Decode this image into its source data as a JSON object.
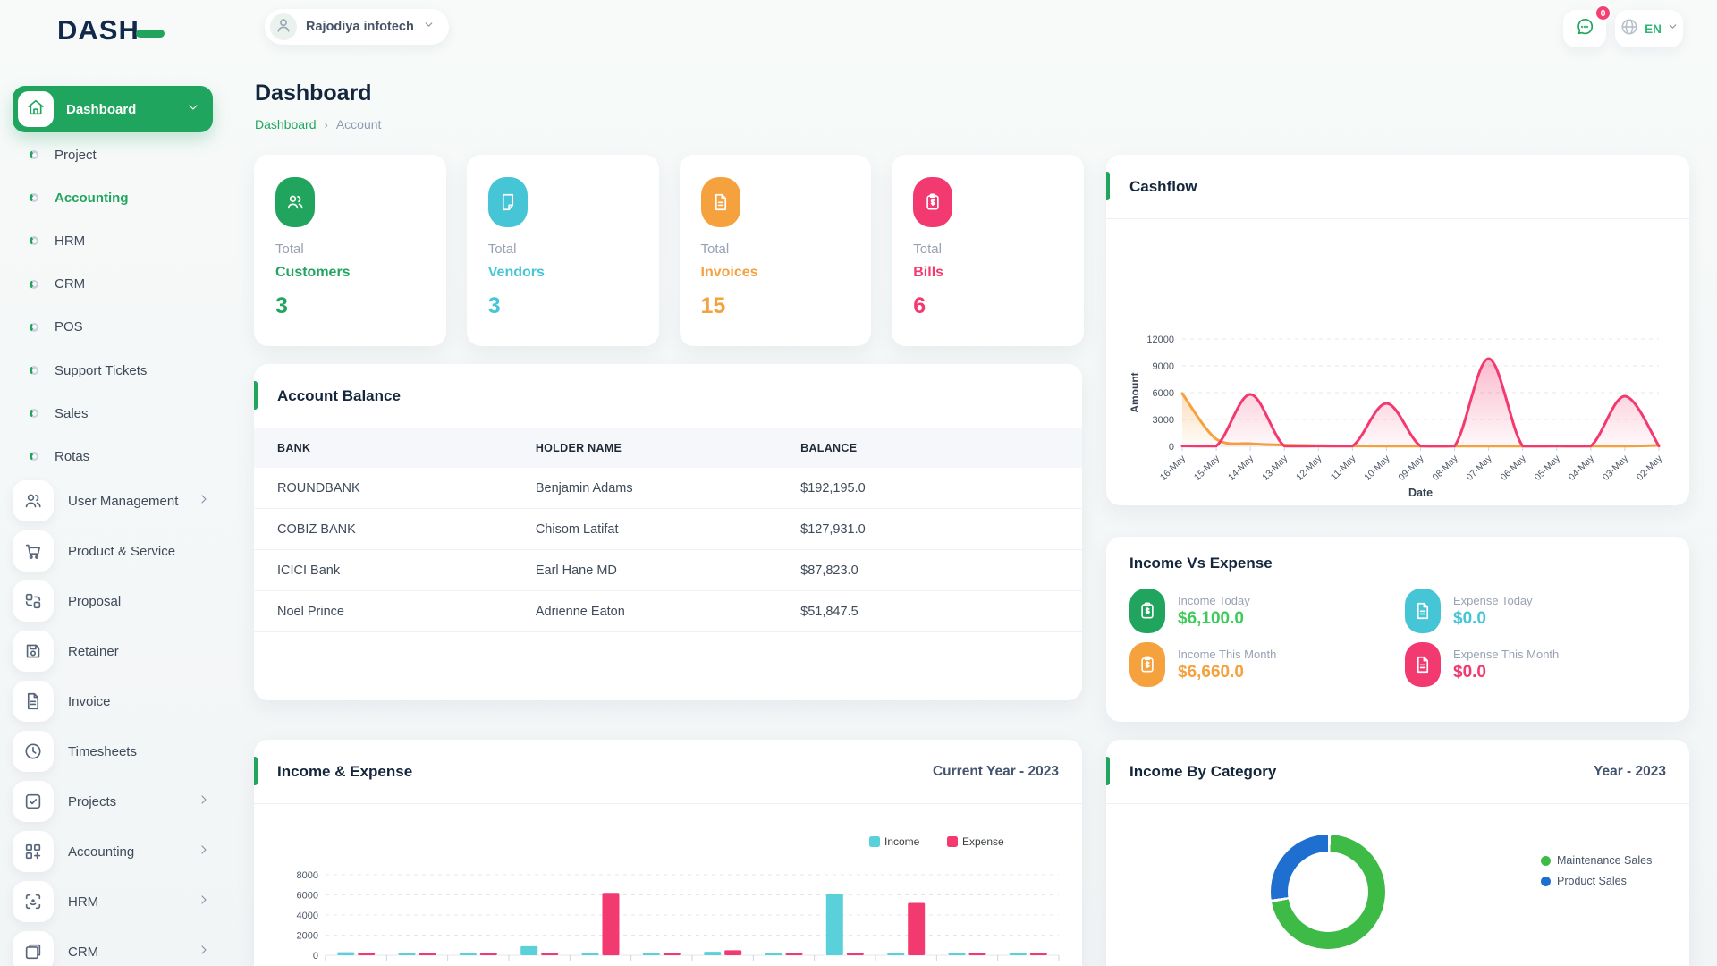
{
  "header": {
    "logo_text": "DASH",
    "company": "Rajodiya infotech",
    "messages_badge": "0",
    "language": "EN"
  },
  "sidebar": {
    "active": {
      "label": "Dashboard",
      "icon": "home"
    },
    "submenu": [
      {
        "label": "Project",
        "active": false
      },
      {
        "label": "Accounting",
        "active": true
      },
      {
        "label": "HRM",
        "active": false
      },
      {
        "label": "CRM",
        "active": false
      },
      {
        "label": "POS",
        "active": false
      },
      {
        "label": "Support Tickets",
        "active": false
      },
      {
        "label": "Sales",
        "active": false
      },
      {
        "label": "Rotas",
        "active": false
      }
    ],
    "menu": [
      {
        "label": "User Management",
        "icon": "users",
        "chevron": true
      },
      {
        "label": "Product & Service",
        "icon": "cart",
        "chevron": false
      },
      {
        "label": "Proposal",
        "icon": "proposal",
        "chevron": false
      },
      {
        "label": "Retainer",
        "icon": "save",
        "chevron": false
      },
      {
        "label": "Invoice",
        "icon": "file-text",
        "chevron": false
      },
      {
        "label": "Timesheets",
        "icon": "clock",
        "chevron": false
      },
      {
        "label": "Projects",
        "icon": "check-square",
        "chevron": true
      },
      {
        "label": "Accounting",
        "icon": "grid-plus",
        "chevron": true
      },
      {
        "label": "HRM",
        "icon": "scan-face",
        "chevron": true
      },
      {
        "label": "CRM",
        "icon": "square-copy",
        "chevron": true
      }
    ]
  },
  "page": {
    "title": "Dashboard",
    "breadcrumb": [
      "Dashboard",
      "Account"
    ]
  },
  "colors": {
    "green": "#21a55e",
    "light_green": "#3ecb5a",
    "teal": "#45c5d5",
    "orange": "#f5a13d",
    "pink": "#f23a70",
    "blue": "#1f6fd0",
    "bar_teal": "#5ad0da"
  },
  "stats": [
    {
      "label": "Total",
      "name": "Customers",
      "value": "3",
      "color": "#21a55e",
      "icon": "users"
    },
    {
      "label": "Total",
      "name": "Vendors",
      "value": "3",
      "color": "#45c5d5",
      "icon": "file-blank"
    },
    {
      "label": "Total",
      "name": "Invoices",
      "value": "15",
      "color": "#f5a13d",
      "icon": "file-text"
    },
    {
      "label": "Total",
      "name": "Bills",
      "value": "6",
      "color": "#f23a70",
      "icon": "clipboard-dollar"
    }
  ],
  "account_balance": {
    "title": "Account Balance",
    "columns": [
      "BANK",
      "HOLDER NAME",
      "BALANCE"
    ],
    "rows": [
      [
        "ROUNDBANK",
        "Benjamin Adams",
        "$192,195.0"
      ],
      [
        "COBIZ BANK",
        "Chisom Latifat",
        "$127,931.0"
      ],
      [
        "ICICI Bank",
        "Earl Hane MD",
        "$87,823.0"
      ],
      [
        "Noel Prince",
        "Adrienne Eaton",
        "$51,847.5"
      ]
    ]
  },
  "income_vs_expense": {
    "title": "Income Vs Expense",
    "items": [
      {
        "label": "Income Today",
        "value": "$6,100.0",
        "color": "#3ecb5a",
        "icon_bg": "#21a55e",
        "icon": "clipboard-dollar"
      },
      {
        "label": "Expense Today",
        "value": "$0.0",
        "color": "#45c5d5",
        "icon_bg": "#45c5d5",
        "icon": "file-text"
      },
      {
        "label": "Income This Month",
        "value": "$6,660.0",
        "color": "#f5a13d",
        "icon_bg": "#f5a13d",
        "icon": "clipboard-dollar"
      },
      {
        "label": "Expense This Month",
        "value": "$0.0",
        "color": "#f23a70",
        "icon_bg": "#f23a70",
        "icon": "file-text"
      }
    ]
  },
  "chart_data": [
    {
      "id": "cashflow",
      "type": "area",
      "title": "Cashflow",
      "xlabel": "Date",
      "ylabel": "Amount",
      "ylim": [
        0,
        12000
      ],
      "yticks": [
        0,
        3000,
        6000,
        9000,
        12000
      ],
      "grid": true,
      "x": [
        "16-May",
        "15-May",
        "14-May",
        "13-May",
        "12-May",
        "11-May",
        "10-May",
        "09-May",
        "08-May",
        "07-May",
        "06-May",
        "05-May",
        "04-May",
        "03-May",
        "02-May"
      ],
      "series": [
        {
          "name": "series-orange",
          "color": "#f5a13d",
          "values": [
            5900,
            800,
            300,
            150,
            80,
            40,
            30,
            30,
            30,
            30,
            30,
            30,
            30,
            30,
            100
          ]
        },
        {
          "name": "series-pink",
          "color": "#f23a70",
          "values": [
            40,
            40,
            5800,
            40,
            40,
            40,
            4800,
            40,
            40,
            9800,
            40,
            40,
            40,
            5600,
            40
          ]
        }
      ]
    },
    {
      "id": "income_expense",
      "type": "bar",
      "title": "Income & Expense",
      "subtitle": "Current Year - 2023",
      "ylim": [
        0,
        8000
      ],
      "yticks": [
        0,
        2000,
        4000,
        6000,
        8000
      ],
      "grid": true,
      "legend_position": "top-right",
      "categories": [
        "",
        "",
        "",
        "",
        "",
        "",
        "",
        "",
        "",
        "",
        "",
        ""
      ],
      "series": [
        {
          "name": "Income",
          "color": "#5ad0da",
          "values": [
            300,
            250,
            250,
            900,
            250,
            250,
            350,
            250,
            6100,
            250,
            250,
            250
          ]
        },
        {
          "name": "Expense",
          "color": "#f23a70",
          "values": [
            250,
            250,
            250,
            250,
            6200,
            250,
            500,
            250,
            250,
            5200,
            250,
            250
          ]
        }
      ]
    },
    {
      "id": "income_by_category",
      "type": "pie",
      "title": "Income By Category",
      "subtitle": "Year - 2023",
      "labels": [
        "Maintenance Sales",
        "Product Sales"
      ],
      "values": [
        72,
        28
      ],
      "colors": [
        "#3dbb46",
        "#1f6fd0"
      ],
      "legend_position": "right"
    }
  ]
}
